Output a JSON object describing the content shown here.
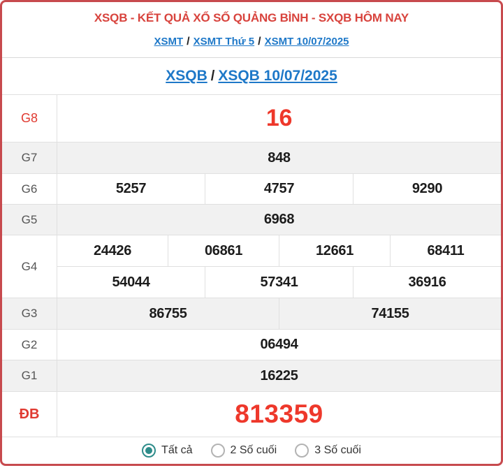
{
  "header": {
    "title": "XSQB - KẾT QUẢ XỔ SỐ QUẢNG BÌNH - SXQB HÔM NAY",
    "breadcrumb": {
      "links": [
        "XSMT",
        "XSMT Thứ 5",
        "XSMT 10/07/2025"
      ],
      "separator": "/"
    },
    "subtitle": {
      "links": [
        "XSQB",
        "XSQB 10/07/2025"
      ],
      "separator": "/"
    }
  },
  "table": {
    "g8": {
      "label": "G8",
      "values": [
        "16"
      ]
    },
    "g7": {
      "label": "G7",
      "values": [
        "848"
      ]
    },
    "g6": {
      "label": "G6",
      "values": [
        "5257",
        "4757",
        "9290"
      ]
    },
    "g5": {
      "label": "G5",
      "values": [
        "6968"
      ]
    },
    "g4": {
      "label": "G4",
      "row1": [
        "24426",
        "06861",
        "12661",
        "68411"
      ],
      "row2": [
        "54044",
        "57341",
        "36916"
      ]
    },
    "g3": {
      "label": "G3",
      "values": [
        "86755",
        "74155"
      ]
    },
    "g2": {
      "label": "G2",
      "values": [
        "06494"
      ]
    },
    "g1": {
      "label": "G1",
      "values": [
        "16225"
      ]
    },
    "db": {
      "label": "ĐB",
      "values": [
        "813359"
      ]
    }
  },
  "footer": {
    "options": [
      {
        "label": "Tất cả",
        "selected": true
      },
      {
        "label": "2 Số cuối",
        "selected": false
      },
      {
        "label": "3 Số cuối",
        "selected": false
      }
    ]
  },
  "colors": {
    "border_red": "#c74a4e",
    "title_red": "#d8433d",
    "value_red": "#ee382b",
    "link_blue": "#1e78c8",
    "radio_teal": "#2d8c8a",
    "row_gray": "#f1f1f1"
  }
}
